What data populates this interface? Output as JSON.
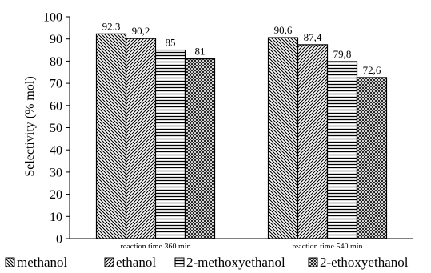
{
  "chart_data": {
    "type": "bar",
    "title": "",
    "xlabel": "",
    "ylabel": "Selectivity (% mol)",
    "ylim": [
      0,
      100
    ],
    "yticks": [
      0,
      10,
      20,
      30,
      40,
      50,
      60,
      70,
      80,
      90,
      100
    ],
    "grid": false,
    "legend_position": "bottom",
    "categories": [
      "reaction time 360 min",
      "reaction time 540 min"
    ],
    "series": [
      {
        "name": "methanol",
        "values": [
          92.3,
          90.6
        ],
        "labels": [
          "92.3",
          "90,6"
        ],
        "pattern": "diag-down"
      },
      {
        "name": "ethanol",
        "values": [
          90.2,
          87.4
        ],
        "labels": [
          "90,2",
          "87,4"
        ],
        "pattern": "diag-up"
      },
      {
        "name": "2-methoxyethanol",
        "values": [
          85,
          79.8
        ],
        "labels": [
          "85",
          "79,8"
        ],
        "pattern": "horizontal"
      },
      {
        "name": "2-ethoxyethanol",
        "values": [
          81,
          72.6
        ],
        "labels": [
          "81",
          "72,6"
        ],
        "pattern": "crosshatch"
      }
    ]
  }
}
